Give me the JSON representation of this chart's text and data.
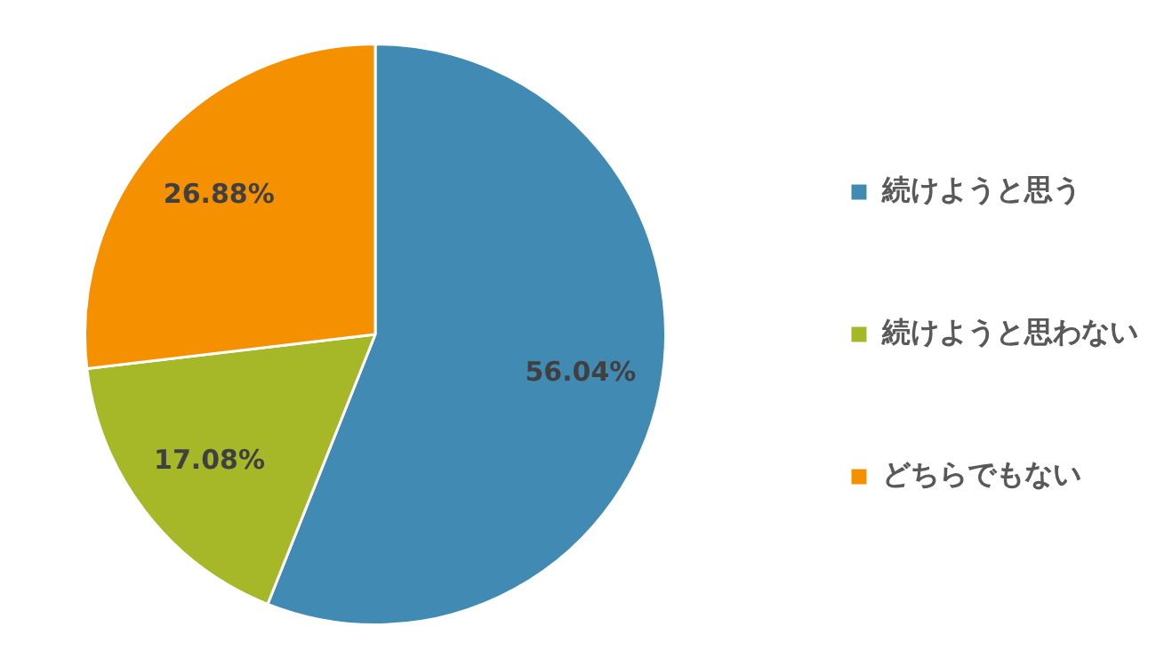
{
  "chart_data": {
    "type": "pie",
    "categories": [
      "続けようと思う",
      "続けようと思わない",
      "どちらでもない"
    ],
    "values": [
      56.04,
      17.08,
      26.88
    ],
    "colors": [
      "#418ab3",
      "#a6b727",
      "#f59100"
    ],
    "value_labels": [
      "56.04%",
      "17.08%",
      "26.88%"
    ],
    "legend": "right"
  }
}
